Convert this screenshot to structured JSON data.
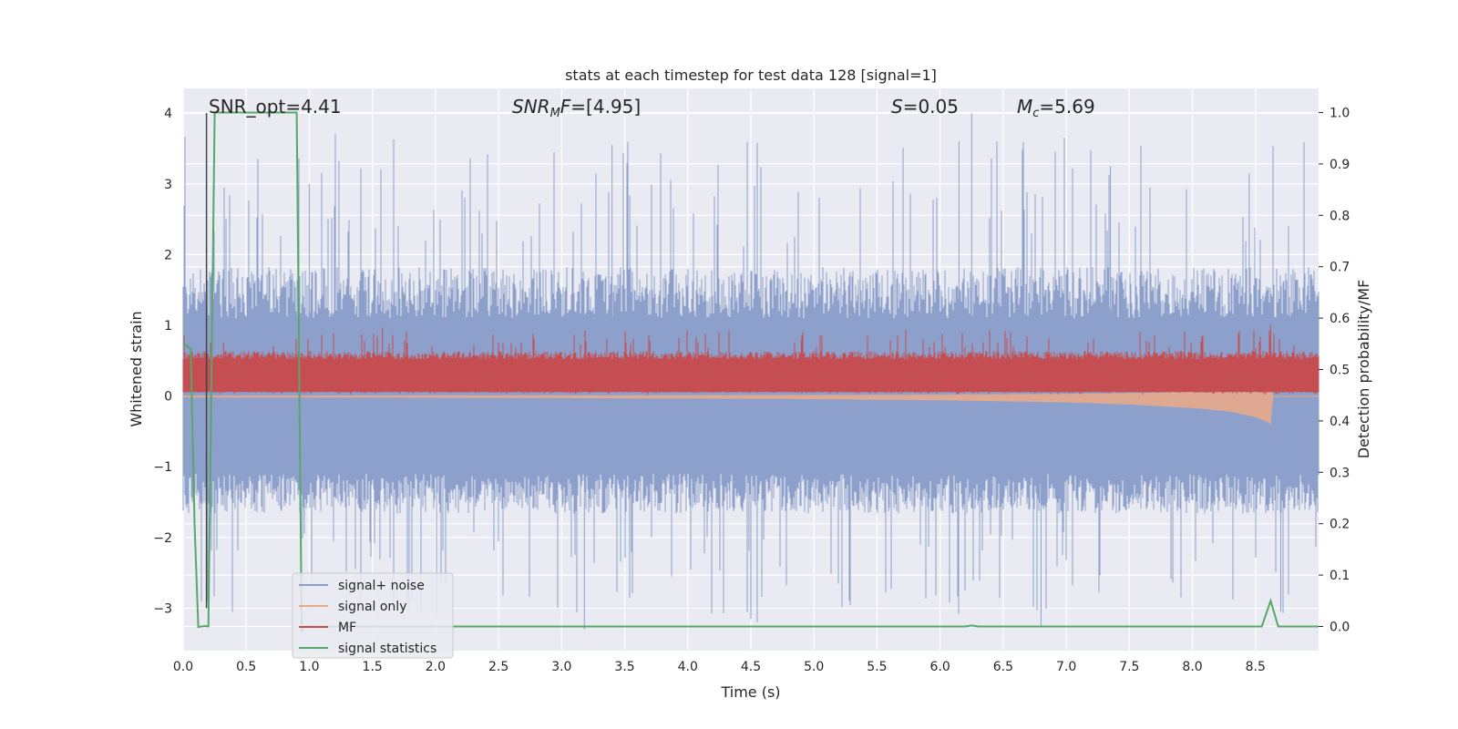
{
  "chart_data": {
    "type": "line",
    "title": "stats at each timestep for test data 128 [signal=1]",
    "xlabel": "Time (s)",
    "ylabel": "Whitened strain",
    "ylabel_right": "Detection probability/MF",
    "xlim": [
      0,
      9
    ],
    "ylim": [
      -3.6,
      4.35
    ],
    "ylim_right": [
      -0.047,
      1.047
    ],
    "x_ticks": [
      0.0,
      0.5,
      1.0,
      1.5,
      2.0,
      2.5,
      3.0,
      3.5,
      4.0,
      4.5,
      5.0,
      5.5,
      6.0,
      6.5,
      7.0,
      7.5,
      8.0,
      8.5
    ],
    "x_tick_labels": [
      "0.0",
      "0.5",
      "1.0",
      "1.5",
      "2.0",
      "2.5",
      "3.0",
      "3.5",
      "4.0",
      "4.5",
      "5.0",
      "5.5",
      "6.0",
      "6.5",
      "7.0",
      "7.5",
      "8.0",
      "8.5"
    ],
    "y_ticks": [
      4,
      3,
      2,
      1,
      0,
      -1,
      -2,
      -3
    ],
    "y_tick_labels": [
      "4",
      "3",
      "2",
      "1",
      "0",
      "−1",
      "−2",
      "−3"
    ],
    "y_ticks_right": [
      1.0,
      0.9,
      0.8,
      0.7,
      0.6,
      0.5,
      0.4,
      0.3,
      0.2,
      0.1,
      0.0
    ],
    "y_tick_labels_right": [
      "1.0",
      "0.9",
      "0.8",
      "0.7",
      "0.6",
      "0.5",
      "0.4",
      "0.3",
      "0.2",
      "0.1",
      "0.0"
    ],
    "grid": true,
    "legend_position": "lower-left",
    "annotations": {
      "snr_opt": "SNR_opt=4.41",
      "snr_mf": "=[4.95]",
      "s": "=0.05",
      "mc": "=5.69"
    },
    "series": [
      {
        "name": "signal+ noise",
        "color": "#8da0cb",
        "axis": "left",
        "kind": "noise-band",
        "core_range": [
          -1.1,
          1.1
        ],
        "extreme_range": [
          -3.35,
          4.0
        ],
        "spikes": [
          [
            3.18,
            -3.3
          ],
          [
            3.4,
            3.55
          ],
          [
            4.5,
            -3.15
          ],
          [
            4.55,
            -3.2
          ],
          [
            6.15,
            3.6
          ],
          [
            6.25,
            4.0
          ],
          [
            6.45,
            3.6
          ],
          [
            6.8,
            -3.25
          ],
          [
            7.35,
            3.25
          ],
          [
            8.45,
            3.15
          ],
          [
            8.7,
            -3.05
          ],
          [
            1.0,
            3.0
          ]
        ]
      },
      {
        "name": "signal only",
        "color": "#e8a88a",
        "axis": "left",
        "kind": "chirp",
        "x": [
          0.0,
          1.0,
          2.0,
          3.0,
          4.0,
          5.0,
          6.0,
          7.0,
          7.5,
          8.0,
          8.3,
          8.5,
          8.6,
          8.63
        ],
        "amplitude": [
          0.02,
          0.02,
          0.025,
          0.03,
          0.035,
          0.045,
          0.06,
          0.09,
          0.12,
          0.17,
          0.22,
          0.3,
          0.37,
          0.42
        ],
        "ringdown": 0.01
      },
      {
        "name": "MF",
        "color": "#c44e52",
        "axis": "left",
        "kind": "noise-band",
        "core_range": [
          0.06,
          0.52
        ],
        "extreme_range": [
          0.02,
          0.98
        ],
        "spikes": [
          [
            1.58,
            0.97
          ],
          [
            8.62,
            1.0
          ],
          [
            2.6,
            0.75
          ],
          [
            0.32,
            0.75
          ],
          [
            4.9,
            0.78
          ],
          [
            3.7,
            0.78
          ]
        ]
      },
      {
        "name": "signal statistics",
        "color": "#55a868",
        "axis": "right",
        "kind": "line",
        "x": [
          0.0,
          0.06,
          0.09,
          0.12,
          0.17,
          0.2,
          0.25,
          0.9,
          0.94,
          0.96,
          6.2,
          6.25,
          6.3,
          8.55,
          8.62,
          8.68,
          9.0
        ],
        "y": [
          0.55,
          0.54,
          0.2,
          -0.001,
          0.001,
          0.0,
          1.0,
          1.0,
          -0.01,
          0.0,
          0.0,
          0.002,
          0.0,
          0.0,
          0.05,
          0.0,
          0.0
        ]
      }
    ],
    "vertical_line": {
      "x": 0.185,
      "y_top": 4.0,
      "y_bottom": -3.0,
      "color": "#444444"
    }
  }
}
